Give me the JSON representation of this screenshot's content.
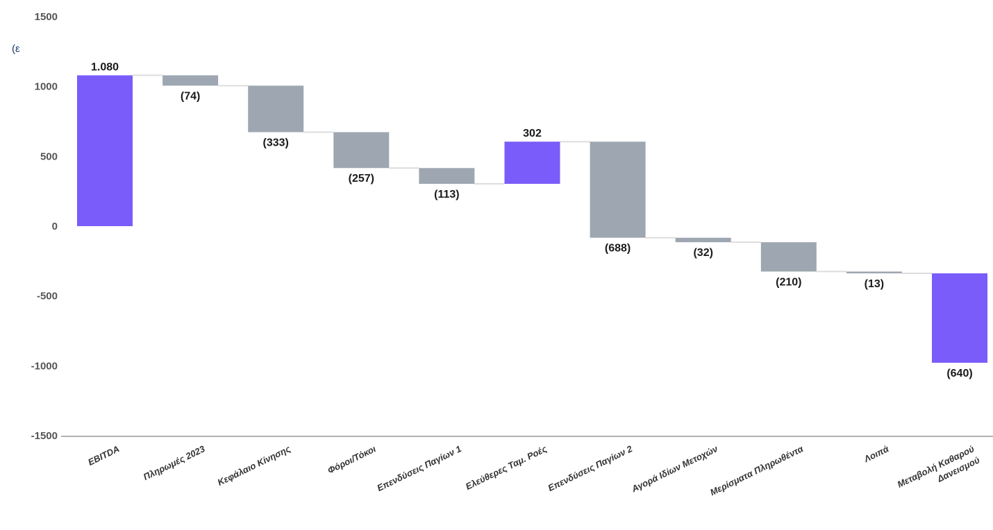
{
  "chart_data": {
    "type": "bar",
    "subtype": "waterfall",
    "unit_label": "(ε",
    "ylim": [
      -1500,
      1500
    ],
    "yticks": [
      "1500",
      "1000",
      "500",
      "0",
      "-500",
      "-1000",
      "-1500"
    ],
    "ytick_values": [
      1500,
      1000,
      500,
      0,
      -500,
      -1000,
      -1500
    ],
    "grid": false,
    "categories": [
      "EBITDA",
      "Πληρωμές 2023",
      "Κεφάλαιο Κίνησης",
      "Φόροι/Τόκοι",
      "Επενδύσεις Παγίων 1",
      "Ελεύθερες Ταμ. Ροές",
      "Επενδύσεις Παγίων 2",
      "Αγορά Ιδίων Μετοχών",
      "Μερίσματα Πληρωθέντα",
      "Λοιπά",
      "Μεταβολή Καθαρού Δανεισμού"
    ],
    "values": [
      1080,
      -74,
      -333,
      -257,
      -113,
      302,
      -688,
      -32,
      -210,
      -13,
      -640
    ],
    "data_labels": [
      "1.080",
      "(74)",
      "(333)",
      "(257)",
      "(113)",
      "302",
      "(688)",
      "(32)",
      "(210)",
      "(13)",
      "(640)"
    ],
    "bar_types": [
      "total",
      "step",
      "step",
      "step",
      "step",
      "total",
      "step",
      "step",
      "step",
      "step",
      "total"
    ],
    "bar_ranges": [
      [
        0,
        1080
      ],
      [
        1006,
        1080
      ],
      [
        673,
        1006
      ],
      [
        416,
        673
      ],
      [
        303,
        416
      ],
      [
        303,
        605
      ],
      [
        -83,
        605
      ],
      [
        -115,
        -83
      ],
      [
        -325,
        -115
      ],
      [
        -338,
        -325
      ],
      [
        -978,
        -338
      ]
    ],
    "colors": {
      "total": "#7a5cfa",
      "step": "#9ea7b1",
      "connector": "#dddddd",
      "axis": "#999999"
    }
  }
}
